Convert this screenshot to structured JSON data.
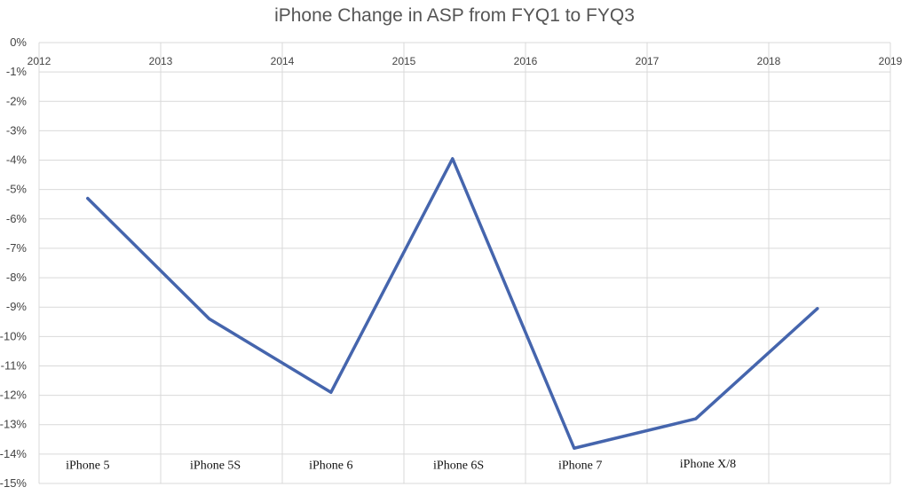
{
  "chart_data": {
    "type": "line",
    "title": "iPhone Change in ASP from FYQ1 to FYQ3",
    "xlabel": "",
    "ylabel": "",
    "xlim": [
      2012,
      2019
    ],
    "ylim": [
      -15,
      0
    ],
    "x_ticks": [
      "2012",
      "2013",
      "2014",
      "2015",
      "2016",
      "2017",
      "2018",
      "2019"
    ],
    "y_ticks": [
      "0%",
      "-1%",
      "-2%",
      "-3%",
      "-4%",
      "-5%",
      "-6%",
      "-7%",
      "-8%",
      "-9%",
      "-10%",
      "-11%",
      "-12%",
      "-13%",
      "-14%",
      "-15%"
    ],
    "grid": true,
    "series": [
      {
        "color": "#4565ad",
        "x": [
          2012.4,
          2013.4,
          2014.4,
          2015.4,
          2016.4,
          2017.4,
          2018.4
        ],
        "y": [
          -5.3,
          -9.4,
          -11.9,
          -3.95,
          -13.8,
          -12.8,
          -9.05
        ]
      }
    ],
    "annotations": [
      {
        "text": "iPhone 5",
        "x": 2012.4,
        "y": -14.35
      },
      {
        "text": "iPhone 5S",
        "x": 2013.45,
        "y": -14.35
      },
      {
        "text": "iPhone 6",
        "x": 2014.4,
        "y": -14.35
      },
      {
        "text": "iPhone 6S",
        "x": 2015.45,
        "y": -14.35
      },
      {
        "text": "iPhone 7",
        "x": 2016.45,
        "y": -14.35
      },
      {
        "text": "iPhone X/8",
        "x": 2017.5,
        "y": -14.3
      }
    ]
  }
}
